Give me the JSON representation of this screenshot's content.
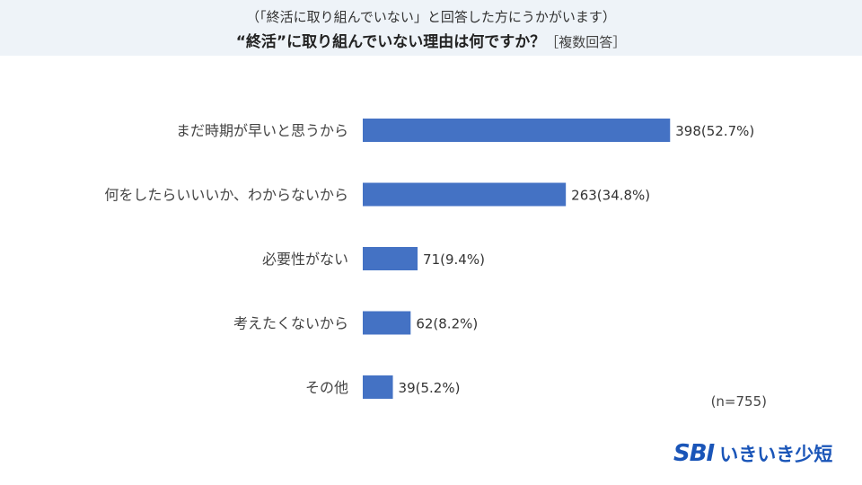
{
  "header": {
    "subtitle": "（「終活に取り組んでいない」と回答した方にうかがいます）",
    "title": "“終活”に取り組んでいない理由は何ですか？",
    "title_note": "［複数回答］"
  },
  "chart_data": {
    "type": "bar",
    "orientation": "horizontal",
    "categories": [
      "まだ時期が早いと思うから",
      "何をしたらいいいか、わからないから",
      "必要性がない",
      "考えたくないから",
      "その他"
    ],
    "values": [
      398,
      263,
      71,
      62,
      39
    ],
    "value_labels": [
      "398(52.7%)",
      "263(34.8%)",
      "71(9.4%)",
      "62(8.2%)",
      "39(5.2%)"
    ],
    "xlim": [
      0,
      400
    ],
    "bar_color": "#4472c4",
    "grid": false
  },
  "sample_size": "(n=755)",
  "logo": {
    "mark": "SBI",
    "text": "いきいき少短",
    "color": "#1a55b8"
  }
}
